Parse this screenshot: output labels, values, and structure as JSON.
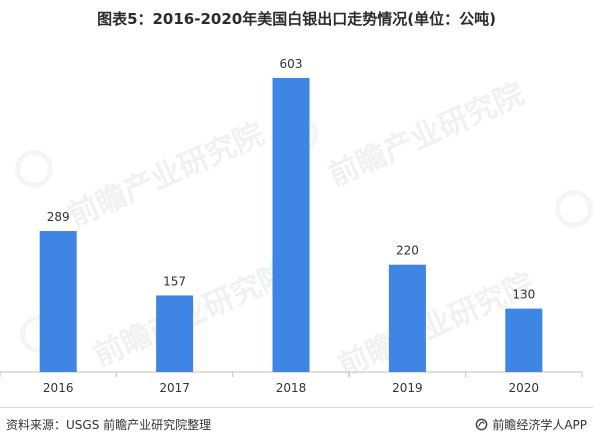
{
  "title": "图表5：2016-2020年美国白银出口走势情况(单位：公吨)",
  "source": "资料来源：USGS 前瞻产业研究院整理",
  "brand": "前瞻经济学人APP",
  "watermark_text": "前瞻产业研究院",
  "colors": {
    "bar": "#3f85e3",
    "axis": "#bfbfbf",
    "label": "#333333"
  },
  "chart_data": {
    "type": "bar",
    "categories": [
      "2016",
      "2017",
      "2018",
      "2019",
      "2020"
    ],
    "values": [
      289,
      157,
      603,
      220,
      130
    ],
    "data_labels": [
      "289",
      "157",
      "603",
      "220",
      "130"
    ],
    "title": "图表5：2016-2020年美国白银出口走势情况(单位：公吨)",
    "ylim": [
      0,
      650
    ],
    "grid": false,
    "legend": "none"
  }
}
